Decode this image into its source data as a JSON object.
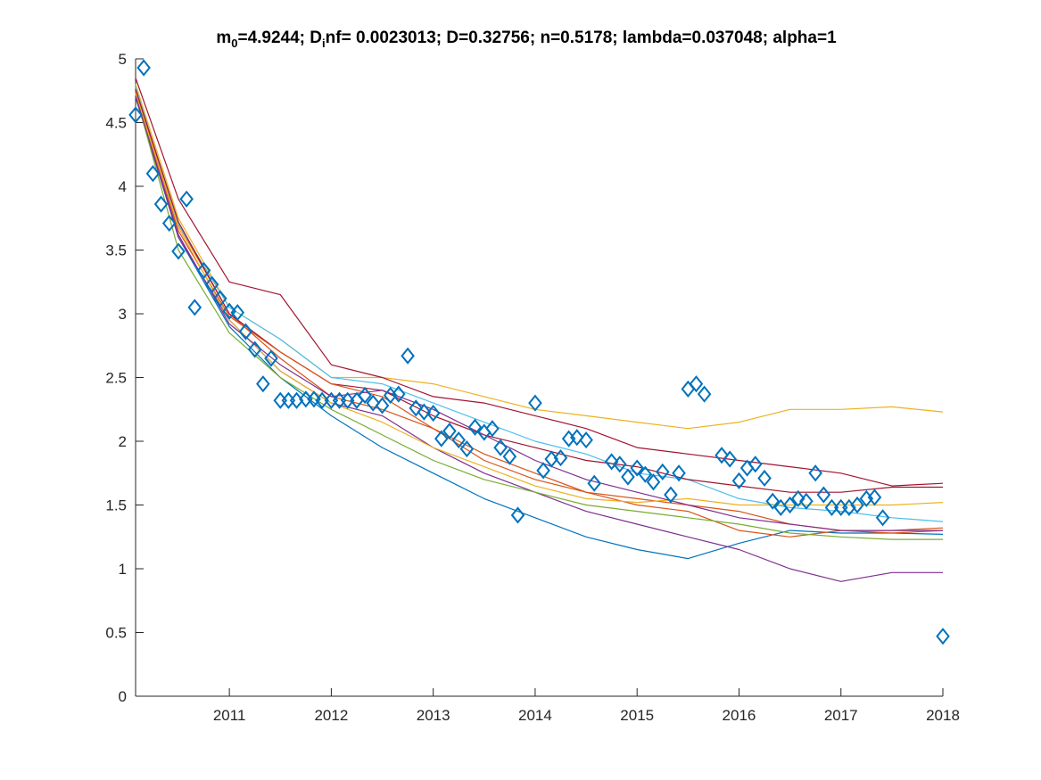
{
  "chart_data": {
    "type": "scatter",
    "title": {
      "parts": [
        {
          "text": "m",
          "sub": false
        },
        {
          "text": "0",
          "sub": true
        },
        {
          "text": "=4.9244; D",
          "sub": false
        },
        {
          "text": "i",
          "sub": true
        },
        {
          "text": "nf= 0.0023013; D=0.32756; n=0.5178; lambda=0.037048; alpha=1",
          "sub": false
        }
      ]
    },
    "xlabel": "",
    "ylabel": "",
    "xlim": [
      2010.08,
      2018.0
    ],
    "ylim": [
      0,
      5
    ],
    "x_ticks": [
      2011,
      2012,
      2013,
      2014,
      2015,
      2016,
      2017,
      2018
    ],
    "y_ticks": [
      0,
      0.5,
      1,
      1.5,
      2,
      2.5,
      3,
      3.5,
      4,
      4.5,
      5
    ],
    "y_tick_labels": [
      "0",
      "0.5",
      "1",
      "1.5",
      "2",
      "2.5",
      "3",
      "3.5",
      "4",
      "4.5",
      "5"
    ],
    "grid": false,
    "observations": {
      "marker": "diamond",
      "color": "#0072BD",
      "points": [
        [
          2010.08,
          4.56
        ],
        [
          2010.16,
          4.93
        ],
        [
          2010.25,
          4.1
        ],
        [
          2010.33,
          3.86
        ],
        [
          2010.41,
          3.71
        ],
        [
          2010.5,
          3.49
        ],
        [
          2010.58,
          3.9
        ],
        [
          2010.66,
          3.05
        ],
        [
          2010.75,
          3.34
        ],
        [
          2010.83,
          3.23
        ],
        [
          2010.91,
          3.12
        ],
        [
          2011.0,
          3.02
        ],
        [
          2011.08,
          3.01
        ],
        [
          2011.16,
          2.86
        ],
        [
          2011.25,
          2.72
        ],
        [
          2011.33,
          2.45
        ],
        [
          2011.41,
          2.65
        ],
        [
          2011.5,
          2.32
        ],
        [
          2011.58,
          2.32
        ],
        [
          2011.66,
          2.32
        ],
        [
          2011.75,
          2.33
        ],
        [
          2011.83,
          2.33
        ],
        [
          2011.91,
          2.32
        ],
        [
          2012.0,
          2.32
        ],
        [
          2012.08,
          2.32
        ],
        [
          2012.16,
          2.32
        ],
        [
          2012.25,
          2.32
        ],
        [
          2012.33,
          2.36
        ],
        [
          2012.41,
          2.3
        ],
        [
          2012.5,
          2.28
        ],
        [
          2012.58,
          2.36
        ],
        [
          2012.66,
          2.37
        ],
        [
          2012.75,
          2.67
        ],
        [
          2012.83,
          2.26
        ],
        [
          2012.91,
          2.23
        ],
        [
          2013.0,
          2.22
        ],
        [
          2013.08,
          2.02
        ],
        [
          2013.16,
          2.08
        ],
        [
          2013.25,
          2.01
        ],
        [
          2013.33,
          1.94
        ],
        [
          2013.41,
          2.11
        ],
        [
          2013.5,
          2.07
        ],
        [
          2013.58,
          2.1
        ],
        [
          2013.66,
          1.95
        ],
        [
          2013.75,
          1.88
        ],
        [
          2013.83,
          1.42
        ],
        [
          2014.0,
          2.3
        ],
        [
          2014.08,
          1.77
        ],
        [
          2014.16,
          1.86
        ],
        [
          2014.25,
          1.87
        ],
        [
          2014.33,
          2.02
        ],
        [
          2014.41,
          2.03
        ],
        [
          2014.5,
          2.01
        ],
        [
          2014.58,
          1.67
        ],
        [
          2014.75,
          1.84
        ],
        [
          2014.83,
          1.82
        ],
        [
          2014.91,
          1.72
        ],
        [
          2015.0,
          1.79
        ],
        [
          2015.08,
          1.74
        ],
        [
          2015.16,
          1.68
        ],
        [
          2015.25,
          1.76
        ],
        [
          2015.33,
          1.58
        ],
        [
          2015.41,
          1.75
        ],
        [
          2015.5,
          2.41
        ],
        [
          2015.58,
          2.45
        ],
        [
          2015.66,
          2.37
        ],
        [
          2015.83,
          1.89
        ],
        [
          2015.91,
          1.86
        ],
        [
          2016.0,
          1.69
        ],
        [
          2016.08,
          1.79
        ],
        [
          2016.16,
          1.82
        ],
        [
          2016.25,
          1.71
        ],
        [
          2016.33,
          1.53
        ],
        [
          2016.41,
          1.48
        ],
        [
          2016.5,
          1.5
        ],
        [
          2016.58,
          1.55
        ],
        [
          2016.66,
          1.53
        ],
        [
          2016.75,
          1.75
        ],
        [
          2016.83,
          1.58
        ],
        [
          2016.91,
          1.48
        ],
        [
          2017.0,
          1.48
        ],
        [
          2017.08,
          1.48
        ],
        [
          2017.16,
          1.5
        ],
        [
          2017.25,
          1.55
        ],
        [
          2017.33,
          1.56
        ],
        [
          2017.41,
          1.4
        ],
        [
          2018.0,
          0.47
        ]
      ]
    },
    "series": [
      {
        "color": "#0072BD",
        "points": [
          [
            2010.08,
            4.7
          ],
          [
            2010.5,
            3.6
          ],
          [
            2011.0,
            2.9
          ],
          [
            2011.5,
            2.5
          ],
          [
            2012.0,
            2.2
          ],
          [
            2012.5,
            1.95
          ],
          [
            2013.0,
            1.75
          ],
          [
            2013.5,
            1.55
          ],
          [
            2014.0,
            1.4
          ],
          [
            2014.5,
            1.25
          ],
          [
            2015.0,
            1.15
          ],
          [
            2015.5,
            1.08
          ],
          [
            2016.0,
            1.2
          ],
          [
            2016.5,
            1.3
          ],
          [
            2017.0,
            1.28
          ],
          [
            2017.5,
            1.28
          ],
          [
            2018.0,
            1.27
          ]
        ]
      },
      {
        "color": "#D95319",
        "points": [
          [
            2010.08,
            4.75
          ],
          [
            2010.5,
            3.7
          ],
          [
            2011.0,
            3.0
          ],
          [
            2011.5,
            2.65
          ],
          [
            2012.0,
            2.35
          ],
          [
            2012.5,
            2.25
          ],
          [
            2013.0,
            2.1
          ],
          [
            2013.5,
            1.9
          ],
          [
            2014.0,
            1.75
          ],
          [
            2014.5,
            1.6
          ],
          [
            2015.0,
            1.5
          ],
          [
            2015.5,
            1.45
          ],
          [
            2016.0,
            1.3
          ],
          [
            2016.5,
            1.25
          ],
          [
            2017.0,
            1.3
          ],
          [
            2017.5,
            1.28
          ],
          [
            2018.0,
            1.3
          ]
        ]
      },
      {
        "color": "#EDB120",
        "points": [
          [
            2010.08,
            4.8
          ],
          [
            2010.5,
            3.75
          ],
          [
            2011.0,
            3.05
          ],
          [
            2011.5,
            2.8
          ],
          [
            2012.0,
            2.5
          ],
          [
            2012.5,
            2.5
          ],
          [
            2013.0,
            2.45
          ],
          [
            2013.5,
            2.35
          ],
          [
            2014.0,
            2.25
          ],
          [
            2014.5,
            2.2
          ],
          [
            2015.0,
            2.15
          ],
          [
            2015.5,
            2.1
          ],
          [
            2016.0,
            2.15
          ],
          [
            2016.5,
            2.25
          ],
          [
            2017.0,
            2.25
          ],
          [
            2017.5,
            2.27
          ],
          [
            2018.0,
            2.23
          ]
        ]
      },
      {
        "color": "#7E2F8E",
        "points": [
          [
            2010.08,
            4.7
          ],
          [
            2010.5,
            3.6
          ],
          [
            2011.0,
            2.95
          ],
          [
            2011.5,
            2.55
          ],
          [
            2012.0,
            2.3
          ],
          [
            2012.5,
            2.2
          ],
          [
            2013.0,
            1.95
          ],
          [
            2013.5,
            1.75
          ],
          [
            2014.0,
            1.6
          ],
          [
            2014.5,
            1.45
          ],
          [
            2015.0,
            1.35
          ],
          [
            2015.5,
            1.25
          ],
          [
            2016.0,
            1.15
          ],
          [
            2016.5,
            1.0
          ],
          [
            2017.0,
            0.9
          ],
          [
            2017.5,
            0.97
          ],
          [
            2018.0,
            0.97
          ]
        ]
      },
      {
        "color": "#77AC30",
        "points": [
          [
            2010.08,
            4.72
          ],
          [
            2010.5,
            3.5
          ],
          [
            2011.0,
            2.85
          ],
          [
            2011.5,
            2.5
          ],
          [
            2012.0,
            2.25
          ],
          [
            2012.5,
            2.05
          ],
          [
            2013.0,
            1.85
          ],
          [
            2013.5,
            1.7
          ],
          [
            2014.0,
            1.6
          ],
          [
            2014.5,
            1.5
          ],
          [
            2015.0,
            1.45
          ],
          [
            2015.5,
            1.4
          ],
          [
            2016.0,
            1.35
          ],
          [
            2016.5,
            1.28
          ],
          [
            2017.0,
            1.25
          ],
          [
            2017.5,
            1.23
          ],
          [
            2018.0,
            1.23
          ]
        ]
      },
      {
        "color": "#4DBEEE",
        "points": [
          [
            2010.08,
            4.78
          ],
          [
            2010.5,
            3.7
          ],
          [
            2011.0,
            3.05
          ],
          [
            2011.5,
            2.8
          ],
          [
            2012.0,
            2.5
          ],
          [
            2012.5,
            2.45
          ],
          [
            2013.0,
            2.3
          ],
          [
            2013.5,
            2.15
          ],
          [
            2014.0,
            2.0
          ],
          [
            2014.5,
            1.9
          ],
          [
            2015.0,
            1.75
          ],
          [
            2015.5,
            1.7
          ],
          [
            2016.0,
            1.55
          ],
          [
            2016.5,
            1.48
          ],
          [
            2017.0,
            1.45
          ],
          [
            2017.5,
            1.4
          ],
          [
            2018.0,
            1.37
          ]
        ]
      },
      {
        "color": "#A2142F",
        "points": [
          [
            2010.08,
            4.85
          ],
          [
            2010.5,
            3.9
          ],
          [
            2011.0,
            3.25
          ],
          [
            2011.5,
            3.15
          ],
          [
            2012.0,
            2.6
          ],
          [
            2012.5,
            2.5
          ],
          [
            2013.0,
            2.35
          ],
          [
            2013.5,
            2.3
          ],
          [
            2014.0,
            2.2
          ],
          [
            2014.5,
            2.1
          ],
          [
            2015.0,
            1.95
          ],
          [
            2015.5,
            1.9
          ],
          [
            2016.0,
            1.85
          ],
          [
            2016.5,
            1.8
          ],
          [
            2017.0,
            1.75
          ],
          [
            2017.5,
            1.65
          ],
          [
            2018.0,
            1.67
          ]
        ]
      },
      {
        "color": "#A2142F",
        "points": [
          [
            2010.08,
            4.76
          ],
          [
            2010.5,
            3.72
          ],
          [
            2011.0,
            3.0
          ],
          [
            2011.5,
            2.7
          ],
          [
            2012.0,
            2.45
          ],
          [
            2012.5,
            2.4
          ],
          [
            2013.0,
            2.2
          ],
          [
            2013.5,
            2.05
          ],
          [
            2014.0,
            1.95
          ],
          [
            2014.5,
            1.85
          ],
          [
            2015.0,
            1.8
          ],
          [
            2015.5,
            1.7
          ],
          [
            2016.0,
            1.65
          ],
          [
            2016.5,
            1.6
          ],
          [
            2017.0,
            1.6
          ],
          [
            2017.5,
            1.64
          ],
          [
            2018.0,
            1.64
          ]
        ]
      },
      {
        "color": "#D95319",
        "points": [
          [
            2010.08,
            4.74
          ],
          [
            2010.5,
            3.65
          ],
          [
            2011.0,
            2.98
          ],
          [
            2011.5,
            2.7
          ],
          [
            2012.0,
            2.45
          ],
          [
            2012.5,
            2.35
          ],
          [
            2013.0,
            2.1
          ],
          [
            2013.5,
            1.85
          ],
          [
            2014.0,
            1.7
          ],
          [
            2014.5,
            1.6
          ],
          [
            2015.0,
            1.55
          ],
          [
            2015.5,
            1.5
          ],
          [
            2016.0,
            1.45
          ],
          [
            2016.5,
            1.35
          ],
          [
            2017.0,
            1.3
          ],
          [
            2017.5,
            1.3
          ],
          [
            2018.0,
            1.32
          ]
        ]
      },
      {
        "color": "#EDB120",
        "points": [
          [
            2010.08,
            4.73
          ],
          [
            2010.5,
            3.68
          ],
          [
            2011.0,
            2.95
          ],
          [
            2011.5,
            2.55
          ],
          [
            2012.0,
            2.3
          ],
          [
            2012.5,
            2.15
          ],
          [
            2013.0,
            1.95
          ],
          [
            2013.5,
            1.8
          ],
          [
            2014.0,
            1.65
          ],
          [
            2014.5,
            1.55
          ],
          [
            2015.0,
            1.52
          ],
          [
            2015.5,
            1.55
          ],
          [
            2016.0,
            1.5
          ],
          [
            2016.5,
            1.5
          ],
          [
            2017.0,
            1.5
          ],
          [
            2017.5,
            1.5
          ],
          [
            2018.0,
            1.52
          ]
        ]
      },
      {
        "color": "#7E2F8E",
        "points": [
          [
            2010.08,
            4.71
          ],
          [
            2010.5,
            3.62
          ],
          [
            2011.0,
            2.92
          ],
          [
            2011.5,
            2.6
          ],
          [
            2012.0,
            2.35
          ],
          [
            2012.5,
            2.4
          ],
          [
            2013.0,
            2.25
          ],
          [
            2013.5,
            2.05
          ],
          [
            2014.0,
            1.85
          ],
          [
            2014.5,
            1.7
          ],
          [
            2015.0,
            1.6
          ],
          [
            2015.5,
            1.5
          ],
          [
            2016.0,
            1.4
          ],
          [
            2016.5,
            1.35
          ],
          [
            2017.0,
            1.3
          ],
          [
            2017.5,
            1.3
          ],
          [
            2018.0,
            1.3
          ]
        ]
      }
    ]
  }
}
